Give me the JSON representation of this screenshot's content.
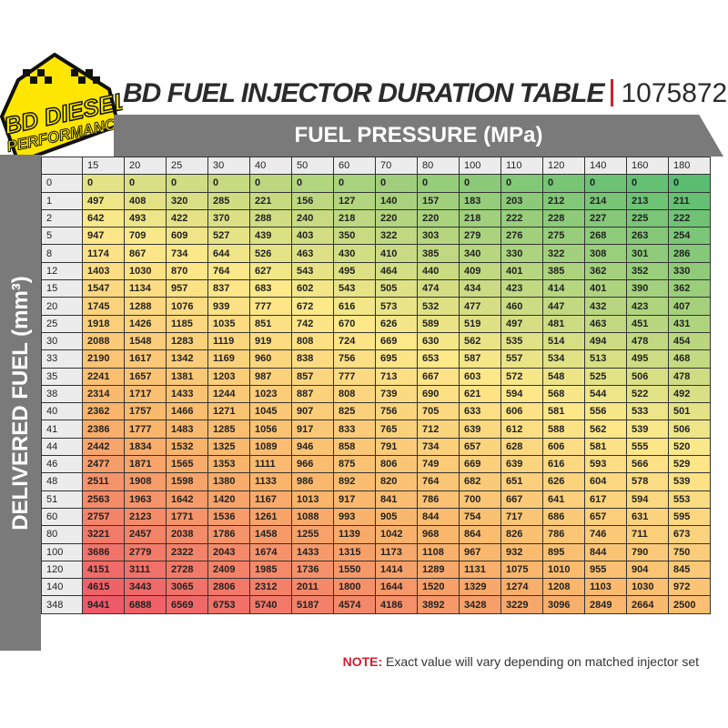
{
  "logo": {
    "text": "BD DIESEL PERFORMANCE"
  },
  "header": {
    "title": "BD FUEL INJECTOR DURATION TABLE",
    "part_number": "1075872"
  },
  "column_axis_label": "FUEL PRESSURE (MPa)",
  "row_axis_label": "DELIVERED FUEL (mm³)",
  "colors": {
    "green": "#5bbd72",
    "yellow": "#fde98a",
    "orange": "#f9b46b",
    "red": "#ee5a68",
    "banner": "#7a7a7a",
    "accent": "#d0202e"
  },
  "table": {
    "columns": [
      "15",
      "20",
      "25",
      "30",
      "40",
      "50",
      "60",
      "70",
      "80",
      "100",
      "110",
      "120",
      "140",
      "160",
      "180"
    ],
    "rows": [
      {
        "label": "0",
        "values": [
          "0",
          "0",
          "0",
          "0",
          "0",
          "0",
          "0",
          "0",
          "0",
          "0",
          "0",
          "0",
          "0",
          "0",
          "0"
        ]
      },
      {
        "label": "1",
        "values": [
          "497",
          "408",
          "320",
          "285",
          "221",
          "156",
          "127",
          "140",
          "157",
          "183",
          "203",
          "212",
          "214",
          "213",
          "211"
        ]
      },
      {
        "label": "2",
        "values": [
          "642",
          "493",
          "422",
          "370",
          "288",
          "240",
          "218",
          "220",
          "220",
          "218",
          "222",
          "228",
          "227",
          "225",
          "222"
        ]
      },
      {
        "label": "5",
        "values": [
          "947",
          "709",
          "609",
          "527",
          "439",
          "403",
          "350",
          "322",
          "303",
          "279",
          "276",
          "275",
          "268",
          "263",
          "254"
        ]
      },
      {
        "label": "8",
        "values": [
          "1174",
          "867",
          "734",
          "644",
          "526",
          "463",
          "430",
          "410",
          "385",
          "340",
          "330",
          "322",
          "308",
          "301",
          "286"
        ]
      },
      {
        "label": "12",
        "values": [
          "1403",
          "1030",
          "870",
          "764",
          "627",
          "543",
          "495",
          "464",
          "440",
          "409",
          "401",
          "385",
          "362",
          "352",
          "330"
        ]
      },
      {
        "label": "15",
        "values": [
          "1547",
          "1134",
          "957",
          "837",
          "683",
          "602",
          "543",
          "505",
          "474",
          "434",
          "423",
          "414",
          "401",
          "390",
          "362"
        ]
      },
      {
        "label": "20",
        "values": [
          "1745",
          "1288",
          "1076",
          "939",
          "777",
          "672",
          "616",
          "573",
          "532",
          "477",
          "460",
          "447",
          "432",
          "423",
          "407"
        ]
      },
      {
        "label": "25",
        "values": [
          "1918",
          "1426",
          "1185",
          "1035",
          "851",
          "742",
          "670",
          "626",
          "589",
          "519",
          "497",
          "481",
          "463",
          "451",
          "431"
        ]
      },
      {
        "label": "30",
        "values": [
          "2088",
          "1548",
          "1283",
          "1119",
          "919",
          "808",
          "724",
          "669",
          "630",
          "562",
          "535",
          "514",
          "494",
          "478",
          "454"
        ]
      },
      {
        "label": "33",
        "values": [
          "2190",
          "1617",
          "1342",
          "1169",
          "960",
          "838",
          "756",
          "695",
          "653",
          "587",
          "557",
          "534",
          "513",
          "495",
          "468"
        ]
      },
      {
        "label": "35",
        "values": [
          "2241",
          "1657",
          "1381",
          "1203",
          "987",
          "857",
          "777",
          "713",
          "667",
          "603",
          "572",
          "548",
          "525",
          "506",
          "478"
        ]
      },
      {
        "label": "38",
        "values": [
          "2314",
          "1717",
          "1433",
          "1244",
          "1023",
          "887",
          "808",
          "739",
          "690",
          "621",
          "594",
          "568",
          "544",
          "522",
          "492"
        ]
      },
      {
        "label": "40",
        "values": [
          "2362",
          "1757",
          "1466",
          "1271",
          "1045",
          "907",
          "825",
          "756",
          "705",
          "633",
          "606",
          "581",
          "556",
          "533",
          "501"
        ]
      },
      {
        "label": "41",
        "values": [
          "2386",
          "1777",
          "1483",
          "1285",
          "1056",
          "917",
          "833",
          "765",
          "712",
          "639",
          "612",
          "588",
          "562",
          "539",
          "506"
        ]
      },
      {
        "label": "44",
        "values": [
          "2442",
          "1834",
          "1532",
          "1325",
          "1089",
          "946",
          "858",
          "791",
          "734",
          "657",
          "628",
          "606",
          "581",
          "555",
          "520"
        ]
      },
      {
        "label": "46",
        "values": [
          "2477",
          "1871",
          "1565",
          "1353",
          "1111",
          "966",
          "875",
          "806",
          "749",
          "669",
          "639",
          "616",
          "593",
          "566",
          "529"
        ]
      },
      {
        "label": "48",
        "values": [
          "2511",
          "1908",
          "1598",
          "1380",
          "1133",
          "986",
          "892",
          "820",
          "764",
          "682",
          "651",
          "626",
          "604",
          "578",
          "539"
        ]
      },
      {
        "label": "51",
        "values": [
          "2563",
          "1963",
          "1642",
          "1420",
          "1167",
          "1013",
          "917",
          "841",
          "786",
          "700",
          "667",
          "641",
          "617",
          "594",
          "553"
        ]
      },
      {
        "label": "60",
        "values": [
          "2757",
          "2123",
          "1771",
          "1536",
          "1261",
          "1088",
          "993",
          "905",
          "844",
          "754",
          "717",
          "686",
          "657",
          "631",
          "595"
        ]
      },
      {
        "label": "80",
        "values": [
          "3221",
          "2457",
          "2038",
          "1786",
          "1458",
          "1255",
          "1139",
          "1042",
          "968",
          "864",
          "826",
          "786",
          "746",
          "711",
          "673"
        ]
      },
      {
        "label": "100",
        "values": [
          "3686",
          "2779",
          "2322",
          "2043",
          "1674",
          "1433",
          "1315",
          "1173",
          "1108",
          "967",
          "932",
          "895",
          "844",
          "790",
          "750"
        ]
      },
      {
        "label": "120",
        "values": [
          "4151",
          "3111",
          "2728",
          "2409",
          "1985",
          "1736",
          "1550",
          "1414",
          "1289",
          "1131",
          "1075",
          "1010",
          "955",
          "904",
          "845"
        ]
      },
      {
        "label": "140",
        "values": [
          "4615",
          "3443",
          "3065",
          "2806",
          "2312",
          "2011",
          "1800",
          "1644",
          "1520",
          "1329",
          "1274",
          "1208",
          "1103",
          "1030",
          "972"
        ]
      },
      {
        "label": "348",
        "values": [
          "9441",
          "6888",
          "6569",
          "6753",
          "5740",
          "5187",
          "4574",
          "4186",
          "3892",
          "3428",
          "3229",
          "3096",
          "2849",
          "2664",
          "2500"
        ]
      }
    ]
  },
  "note": {
    "label": "NOTE:",
    "text": "Exact value will vary depending on matched injector set"
  }
}
